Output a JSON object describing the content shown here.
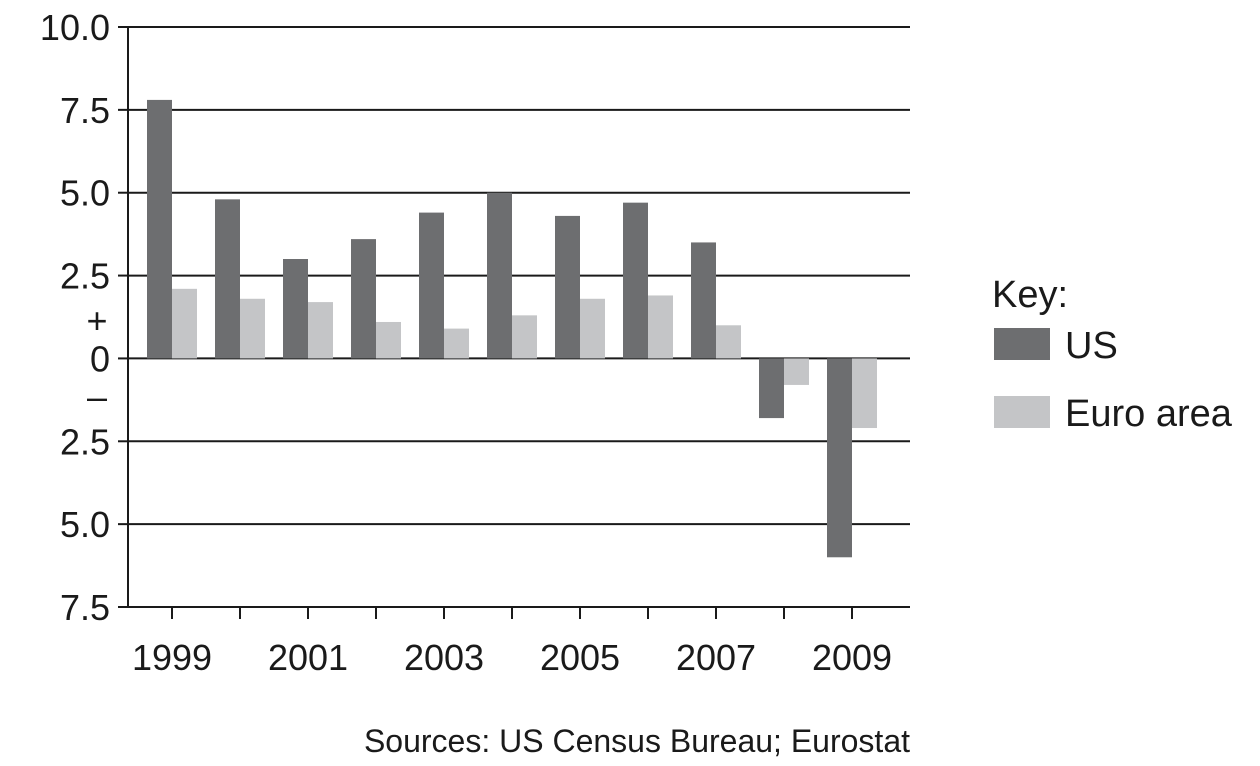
{
  "chart_data": {
    "type": "bar",
    "categories": [
      "1999",
      "2000",
      "2001",
      "2002",
      "2003",
      "2004",
      "2005",
      "2006",
      "2007",
      "2008",
      "2009"
    ],
    "x_tick_labels": [
      "1999",
      "2001",
      "2003",
      "2005",
      "2007",
      "2009"
    ],
    "series": [
      {
        "name": "US",
        "color": "#6d6e70",
        "values": [
          7.8,
          4.8,
          3.0,
          3.6,
          4.4,
          5.0,
          4.3,
          4.7,
          3.5,
          -1.8,
          -6.0
        ]
      },
      {
        "name": "Euro area",
        "color": "#c4c5c7",
        "values": [
          2.1,
          1.8,
          1.7,
          1.1,
          0.9,
          1.3,
          1.8,
          1.9,
          1.0,
          -0.8,
          -2.1
        ]
      }
    ],
    "ylim": [
      -7.5,
      10.0
    ],
    "y_ticks": [
      10.0,
      7.5,
      5.0,
      2.5,
      0,
      -2.5,
      -5.0,
      -7.5
    ],
    "y_tick_labels": [
      "10.0",
      "7.5",
      "5.0",
      "2.5",
      "0",
      "2.5",
      "5.0",
      "7.5"
    ],
    "plus_sign": "+",
    "minus_sign": "–",
    "legend_title": "Key:",
    "legend_placement": "right",
    "grid": true,
    "source": "Sources: US Census Bureau; Eurostat"
  }
}
